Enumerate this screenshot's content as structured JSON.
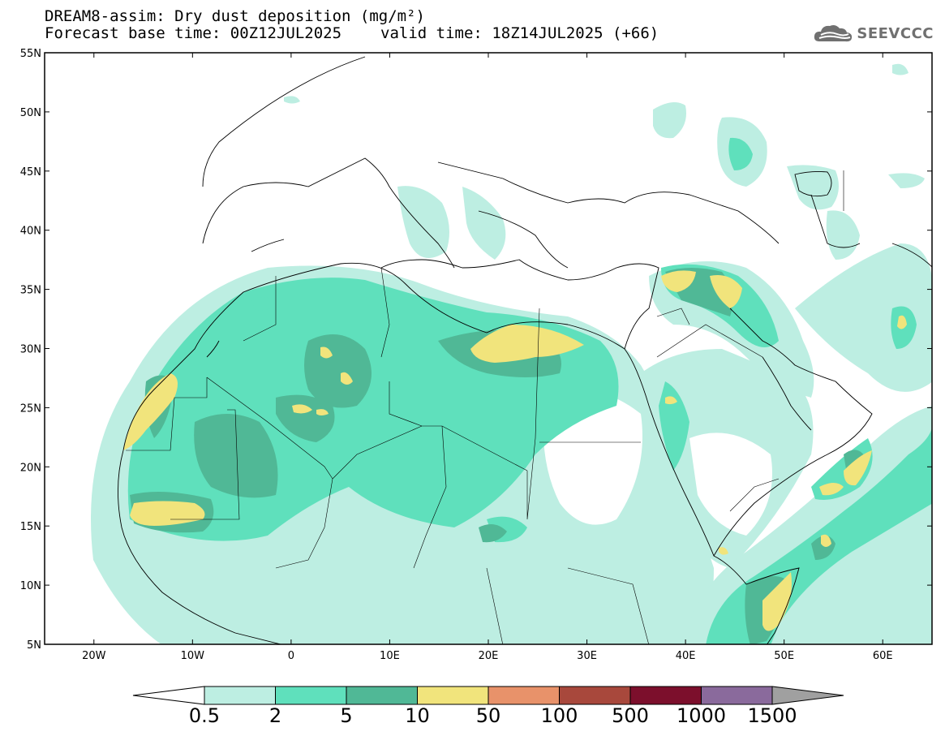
{
  "title": {
    "line1": "DREAM8-assim: Dry dust deposition (mg/m²)",
    "base": "Forecast base time: 00Z12JUL2025",
    "valid": "valid time: 18Z14JUL2025 (+66)"
  },
  "logo": {
    "text": "SEEVCCC",
    "icon": "cloud-icon"
  },
  "map_extent": {
    "lon": [
      -25,
      65
    ],
    "lat": [
      5,
      55
    ]
  },
  "axes": {
    "lat_labels": [
      "55N",
      "50N",
      "45N",
      "40N",
      "35N",
      "30N",
      "25N",
      "20N",
      "15N",
      "10N",
      "5N"
    ],
    "lon_labels": [
      "20W",
      "10W",
      "0",
      "10E",
      "20E",
      "30E",
      "40E",
      "50E",
      "60E"
    ]
  },
  "colorbar": {
    "levels": [
      "0.5",
      "2",
      "5",
      "10",
      "50",
      "100",
      "500",
      "1000",
      "1500"
    ],
    "colors": [
      "#bdeee2",
      "#5fe0bc",
      "#50b896",
      "#f1e47c",
      "#e8926a",
      "#a8483c",
      "#7c0f2c",
      "#8a6a9c"
    ],
    "over_color": "#a0a0a0",
    "under_color": "#ffffff"
  },
  "colors": {
    "land_outline": "#000000",
    "frame": "#000000"
  }
}
